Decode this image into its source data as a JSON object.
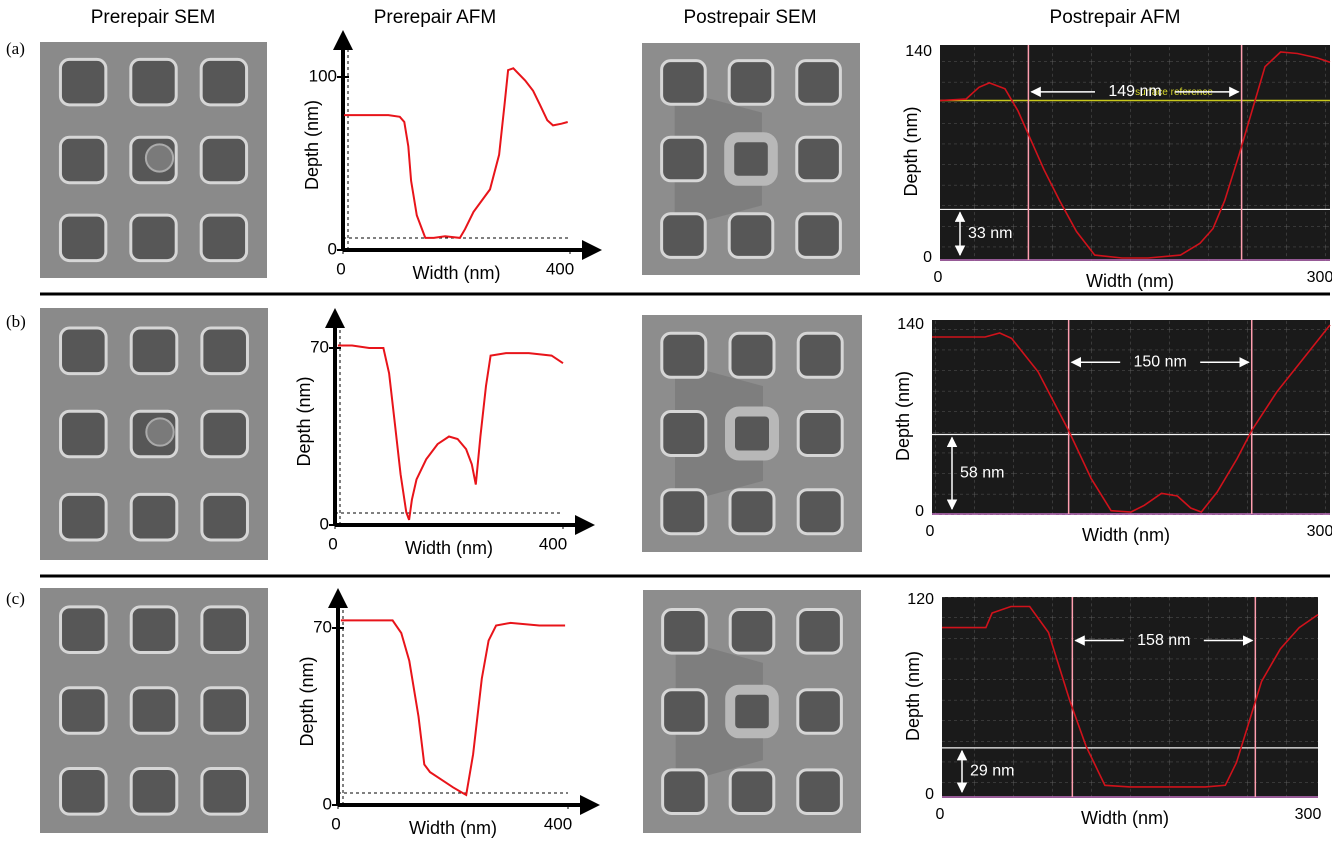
{
  "column_titles": [
    "Prerepair SEM",
    "Prerepair AFM",
    "Postrepair SEM",
    "Postrepair AFM"
  ],
  "panel_labels": [
    "(a)",
    "(b)",
    "(c)"
  ],
  "chart_data": [
    {
      "type": "line",
      "xlabel": "Width (nm)",
      "ylabel": "Depth (nm)",
      "color": "#e8141a",
      "x": [
        2,
        20,
        50,
        80,
        100,
        108,
        115,
        120,
        130,
        145,
        160,
        180,
        206,
        215,
        230,
        259,
        275,
        285,
        291,
        300,
        321,
        335,
        347,
        360,
        370,
        385,
        396
      ],
      "values": [
        78,
        78,
        78,
        78,
        77,
        74,
        60,
        40,
        20,
        7,
        7,
        8,
        7,
        12,
        22,
        35,
        55,
        85,
        104,
        105,
        98,
        92,
        84,
        75,
        72,
        73,
        74
      ],
      "xlim": [
        0,
        400
      ],
      "ylim": [
        0,
        100
      ],
      "xticks": [
        0,
        400
      ],
      "yticks": [
        0,
        100
      ]
    },
    {
      "type": "line",
      "xlabel": "Width (nm)",
      "ylabel": "Depth (nm)",
      "color": "#d0121b",
      "x": [
        0,
        20,
        30,
        38,
        50,
        60,
        70,
        80,
        92,
        105,
        119,
        140,
        160,
        185,
        200,
        210,
        219,
        230,
        240,
        250,
        262,
        275,
        290,
        300
      ],
      "values": [
        107,
        108,
        116,
        119,
        115,
        100,
        80,
        60,
        39,
        18,
        2,
        0,
        0,
        2,
        10,
        20,
        39,
        70,
        100,
        130,
        140,
        139,
        136,
        133
      ],
      "xlim": [
        0,
        300
      ],
      "ylim": [
        0,
        140
      ],
      "xticks": [
        0,
        300
      ],
      "yticks": [
        0,
        140
      ],
      "reference": {
        "label": "surface reference",
        "value": 107
      },
      "cursors": [
        68,
        232
      ],
      "width_label": "149 nm",
      "depth": {
        "label": "33 nm",
        "value": 33
      }
    },
    {
      "type": "line",
      "xlabel": "Width (nm)",
      "ylabel": "Depth (nm)",
      "color": "#e8141a",
      "x": [
        5,
        30,
        60,
        85,
        95,
        105,
        115,
        125,
        130,
        135,
        143,
        160,
        180,
        200,
        215,
        230,
        240,
        247,
        255,
        265,
        273,
        300,
        340,
        380,
        400
      ],
      "values": [
        71,
        71,
        70,
        70,
        60,
        40,
        20,
        5,
        2,
        10,
        18,
        26,
        32,
        35,
        34,
        30,
        24,
        16,
        35,
        55,
        67,
        68,
        68,
        67,
        64
      ],
      "xlim": [
        0,
        400
      ],
      "ylim": [
        0,
        70
      ],
      "xticks": [
        0,
        400
      ],
      "yticks": [
        0,
        70
      ]
    },
    {
      "type": "line",
      "xlabel": "Width (nm)",
      "ylabel": "Depth (nm)",
      "color": "#d0121b",
      "x": [
        0,
        20,
        40,
        51,
        60,
        80,
        103,
        120,
        135,
        150,
        160,
        173,
        185,
        195,
        203,
        215,
        230,
        241,
        260,
        280,
        300
      ],
      "values": [
        131,
        131,
        131,
        134,
        130,
        105,
        61,
        25,
        1,
        0,
        5,
        14,
        12,
        3,
        0,
        15,
        40,
        61,
        90,
        115,
        140
      ],
      "xlim": [
        0,
        300
      ],
      "ylim": [
        0,
        140
      ],
      "xticks": [
        0,
        300
      ],
      "yticks": [
        0,
        140
      ],
      "cursors": [
        103,
        241
      ],
      "width_label": "150 nm",
      "depth": {
        "label": "58 nm",
        "value": 58
      }
    },
    {
      "type": "line",
      "xlabel": "Width (nm)",
      "ylabel": "Depth (nm)",
      "color": "#e8141a",
      "x": [
        5,
        40,
        80,
        95,
        110,
        124,
        140,
        150,
        160,
        180,
        200,
        215,
        223,
        235,
        250,
        262,
        275,
        300,
        350,
        395
      ],
      "values": [
        73,
        73,
        73,
        73,
        68,
        57,
        35,
        16,
        13,
        10,
        7,
        5,
        4,
        20,
        50,
        65,
        71,
        72,
        71,
        71
      ],
      "xlim": [
        0,
        400
      ],
      "ylim": [
        0,
        70
      ],
      "xticks": [
        0,
        400
      ],
      "yticks": [
        0,
        70
      ]
    },
    {
      "type": "line",
      "xlabel": "Width (nm)",
      "ylabel": "Depth (nm)",
      "color": "#d0121b",
      "x": [
        0,
        20,
        35,
        40,
        55,
        70,
        85,
        102,
        115,
        130,
        150,
        180,
        210,
        226,
        235,
        245,
        255,
        270,
        285,
        300
      ],
      "values": [
        103,
        103,
        103,
        112,
        116,
        116,
        100,
        58,
        30,
        6,
        5,
        5,
        5,
        6,
        20,
        45,
        70,
        90,
        103,
        111
      ],
      "xlim": [
        0,
        300
      ],
      "ylim": [
        0,
        120
      ],
      "xticks": [
        0,
        300
      ],
      "yticks": [
        0,
        120
      ],
      "cursors": [
        104,
        250
      ],
      "width_label": "158 nm",
      "depth": {
        "label": "29 nm",
        "value": 29
      }
    }
  ]
}
